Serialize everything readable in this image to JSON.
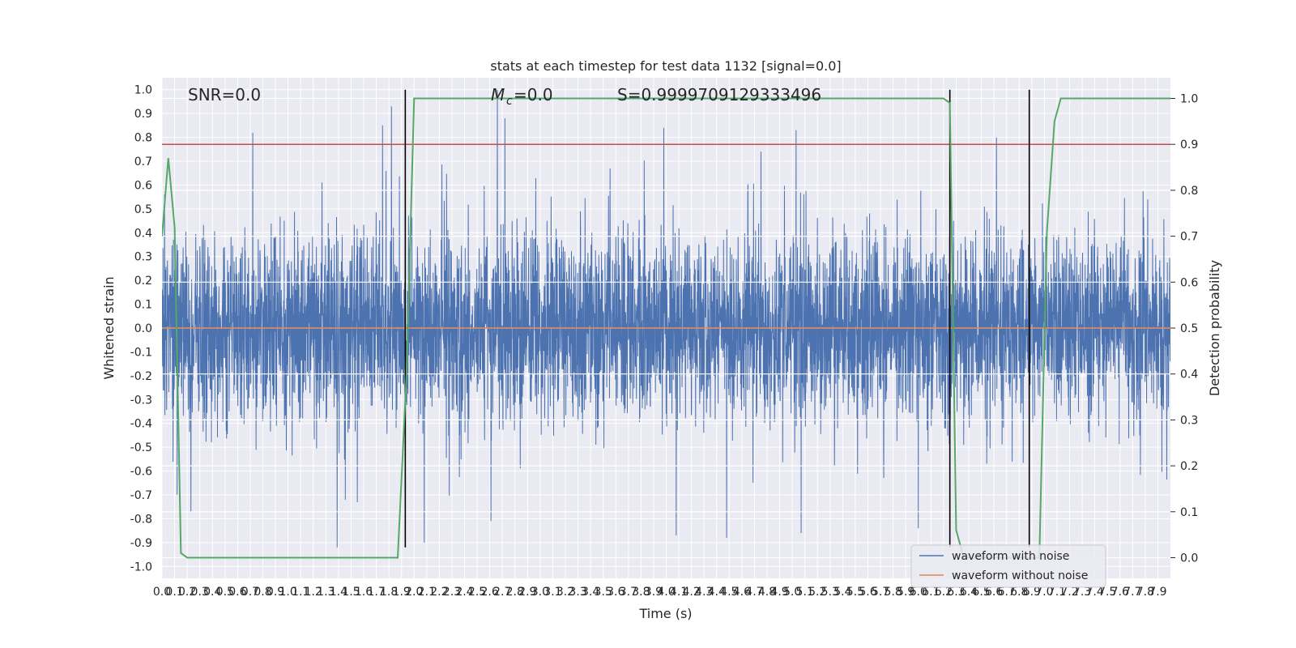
{
  "chart_data": {
    "type": "line",
    "title": "stats at each timestep for test data 1132 [signal=0.0]",
    "xlabel": "Time (s)",
    "ylabel": "Whitened strain",
    "ylabel_right": "Detection probability",
    "xlim": [
      0.0,
      8.0
    ],
    "ylim": [
      -1.05,
      1.05
    ],
    "ylim_right": [
      -0.045,
      1.045
    ],
    "x_ticks": [
      0.0,
      0.1,
      0.2,
      0.3,
      0.4,
      0.5,
      0.6,
      0.7,
      0.8,
      0.9,
      1.0,
      1.1,
      1.2,
      1.3,
      1.4,
      1.5,
      1.6,
      1.7,
      1.8,
      1.9,
      2.0,
      2.1,
      2.2,
      2.3,
      2.4,
      2.5,
      2.6,
      2.7,
      2.8,
      2.9,
      3.0,
      3.1,
      3.2,
      3.3,
      3.4,
      3.5,
      3.6,
      3.7,
      3.8,
      3.9,
      4.0,
      4.1,
      4.2,
      4.3,
      4.4,
      4.5,
      4.6,
      4.7,
      4.8,
      4.9,
      5.0,
      5.1,
      5.2,
      5.3,
      5.4,
      5.5,
      5.6,
      5.7,
      5.8,
      5.9,
      6.0,
      6.1,
      6.2,
      6.3,
      6.4,
      6.5,
      6.6,
      6.7,
      6.8,
      6.9,
      7.0,
      7.1,
      7.2,
      7.3,
      7.4,
      7.5,
      7.6,
      7.7,
      7.8,
      7.9
    ],
    "y_ticks": [
      -1.0,
      -0.9,
      -0.8,
      -0.7,
      -0.6,
      -0.5,
      -0.4,
      -0.3,
      -0.2,
      -0.1,
      0.0,
      0.1,
      0.2,
      0.3,
      0.4,
      0.5,
      0.6,
      0.7,
      0.8,
      0.9,
      1.0
    ],
    "y_ticks_right": [
      0.0,
      0.1,
      0.2,
      0.3,
      0.4,
      0.5,
      0.6,
      0.7,
      0.8,
      0.9,
      1.0
    ],
    "grid": true,
    "legend_position": "bottom-right",
    "annotations": {
      "snr": "SNR=0.0",
      "mc": "=0.0",
      "mc_symbol": "M",
      "mc_subscript": "c",
      "s": "S=0.9999709129333496"
    },
    "series": [
      {
        "name": "waveform with noise",
        "color": "#4c72b0",
        "axis": "left",
        "kind": "noise",
        "sample_rate_hz": 2048,
        "envelope_peak_times": [
          0.02,
          0.72,
          1.75,
          1.82,
          2.66,
          2.72,
          3.98,
          4.08,
          5.03,
          6.62
        ],
        "envelope_peak_values": [
          0.56,
          0.82,
          0.85,
          0.93,
          1.0,
          0.88,
          0.84,
          0.83,
          0.83,
          0.8
        ],
        "envelope_trough_times": [
          0.12,
          0.23,
          1.39,
          1.55,
          2.08,
          2.61,
          4.08,
          4.48,
          5.07,
          6.0
        ],
        "envelope_trough_values": [
          -0.7,
          -0.77,
          -0.92,
          -0.73,
          -0.9,
          -0.81,
          -0.87,
          -0.88,
          -0.86,
          -0.84
        ]
      },
      {
        "name": "waveform without noise",
        "color": "#dd8452",
        "axis": "left",
        "x": [
          0.0,
          8.0
        ],
        "y": [
          0.0,
          0.0
        ]
      },
      {
        "name": "",
        "color": "#55a868",
        "axis": "right",
        "x": [
          0.0,
          0.05,
          0.1,
          0.15,
          0.2,
          0.25,
          1.8,
          1.87,
          1.94,
          2.0,
          6.2,
          6.25,
          6.3,
          6.36,
          6.42,
          6.9,
          6.96,
          7.02,
          7.08,
          7.13,
          8.0
        ],
        "y": [
          0.7,
          0.87,
          0.72,
          0.01,
          0.0,
          0.0,
          0.0,
          0.0,
          0.4,
          1.0,
          1.0,
          0.99,
          0.06,
          0.0,
          0.0,
          0.0,
          0.0,
          0.71,
          0.95,
          1.0,
          1.0
        ]
      }
    ],
    "threshold": {
      "color": "#c44e52",
      "axis": "right",
      "value": 0.9
    },
    "vertical_lines": {
      "color": "#000000",
      "x": [
        1.93,
        6.25,
        6.88
      ],
      "y_top": 1.0,
      "y_bottom": -0.92
    }
  }
}
